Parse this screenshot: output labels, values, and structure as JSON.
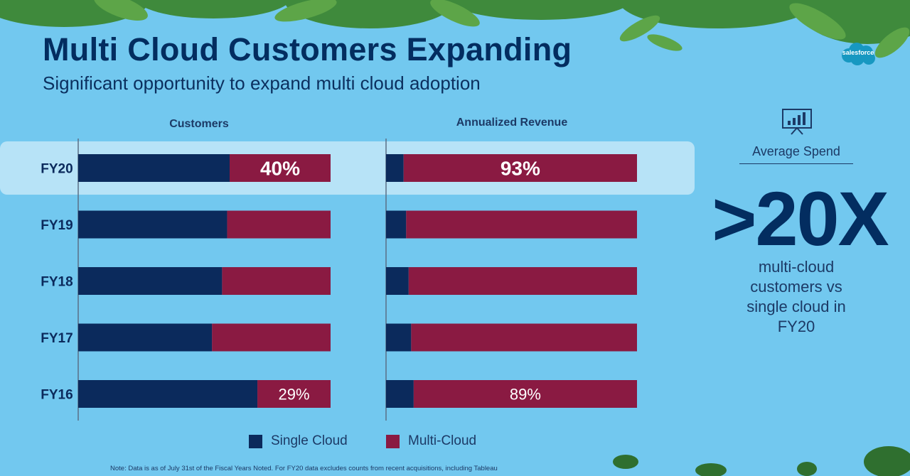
{
  "title": "Multi Cloud Customers Expanding",
  "subtitle": "Significant opportunity to expand multi cloud adoption",
  "logo": {
    "text": "salesforce",
    "color": "#1798c1"
  },
  "colors": {
    "single_cloud": "#0b2a5c",
    "multi_cloud": "#8a1a42",
    "highlight": "#b7e3f7"
  },
  "chart_data": [
    {
      "type": "bar",
      "orientation": "horizontal",
      "stacked": "100%",
      "title": "Customers",
      "categories": [
        "FY20",
        "FY19",
        "FY18",
        "FY17",
        "FY16"
      ],
      "series": [
        {
          "name": "Single Cloud",
          "values": [
            60,
            59,
            57,
            53,
            71
          ]
        },
        {
          "name": "Multi-Cloud",
          "values": [
            40,
            41,
            43,
            47,
            29
          ]
        }
      ],
      "data_labels": [
        "40%",
        "",
        "",
        "",
        "29%"
      ],
      "highlighted_category": "FY20",
      "xlim": [
        0,
        100
      ]
    },
    {
      "type": "bar",
      "orientation": "horizontal",
      "stacked": "100%",
      "title": "Annualized Revenue",
      "categories": [
        "FY20",
        "FY19",
        "FY18",
        "FY17",
        "FY16"
      ],
      "series": [
        {
          "name": "Single Cloud",
          "values": [
            7,
            8,
            9,
            10,
            11
          ]
        },
        {
          "name": "Multi-Cloud",
          "values": [
            93,
            92,
            91,
            90,
            89
          ]
        }
      ],
      "data_labels": [
        "93%",
        "",
        "",
        "",
        "89%"
      ],
      "highlighted_category": "FY20",
      "xlim": [
        0,
        100
      ]
    }
  ],
  "legend": {
    "single": "Single Cloud",
    "multi": "Multi-Cloud"
  },
  "stat": {
    "label": "Average Spend",
    "value": ">20X",
    "description_lines": [
      "multi-cloud",
      "customers vs",
      "single cloud in",
      "FY20"
    ]
  },
  "note": "Note: Data is as of July 31st of the Fiscal Years Noted. For FY20 data excludes counts from recent acquisitions, including Tableau"
}
